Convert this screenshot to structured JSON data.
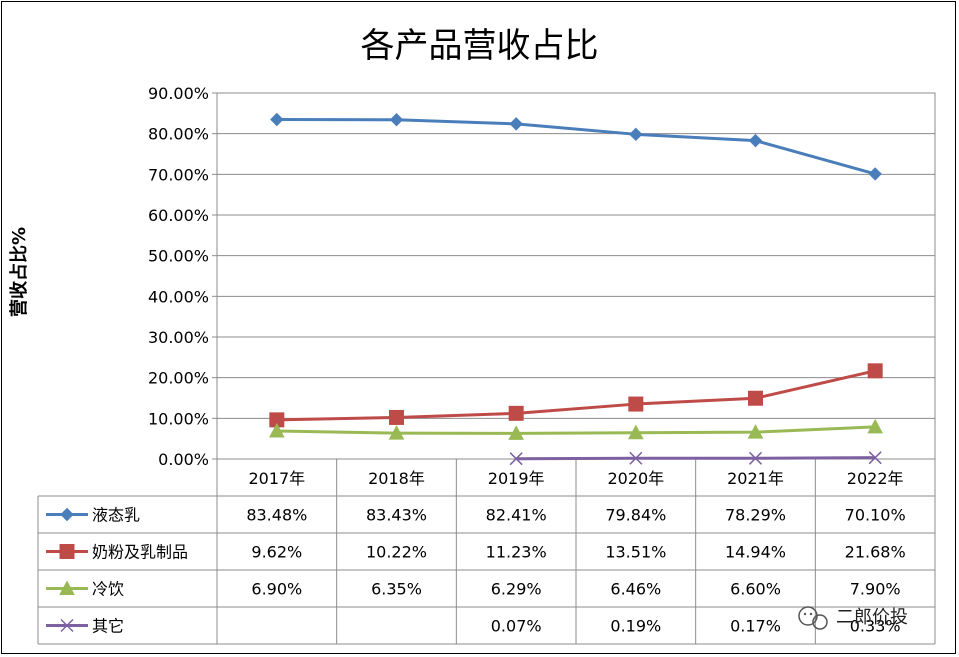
{
  "chart_data": {
    "type": "line",
    "title": "各产品营收占比",
    "ylabel": "营收占比%",
    "xlabel": "",
    "ylim": [
      0,
      90
    ],
    "y_ticks": [
      "0.00%",
      "10.00%",
      "20.00%",
      "30.00%",
      "40.00%",
      "50.00%",
      "60.00%",
      "70.00%",
      "80.00%",
      "90.00%"
    ],
    "categories": [
      "2017年",
      "2018年",
      "2019年",
      "2020年",
      "2021年",
      "2022年"
    ],
    "grid": true,
    "legend": "data-table",
    "series": [
      {
        "name": "液态乳",
        "color": "#4a7ebb",
        "marker": "diamond",
        "values": [
          83.48,
          83.43,
          82.41,
          79.84,
          78.29,
          70.1
        ],
        "labels": [
          "83.48%",
          "83.43%",
          "82.41%",
          "79.84%",
          "78.29%",
          "70.10%"
        ]
      },
      {
        "name": "奶粉及乳制品",
        "color": "#be4b48",
        "marker": "square",
        "values": [
          9.62,
          10.22,
          11.23,
          13.51,
          14.94,
          21.68
        ],
        "labels": [
          "9.62%",
          "10.22%",
          "11.23%",
          "13.51%",
          "14.94%",
          "21.68%"
        ]
      },
      {
        "name": "冷饮",
        "color": "#98b954",
        "marker": "triangle",
        "values": [
          6.9,
          6.35,
          6.29,
          6.46,
          6.6,
          7.9
        ],
        "labels": [
          "6.90%",
          "6.35%",
          "6.29%",
          "6.46%",
          "6.60%",
          "7.90%"
        ]
      },
      {
        "name": "其它",
        "color": "#7d60a0",
        "marker": "x",
        "values": [
          null,
          null,
          0.07,
          0.19,
          0.17,
          0.33
        ],
        "labels": [
          "",
          "",
          "0.07%",
          "0.19%",
          "0.17%",
          "0.33%"
        ]
      }
    ]
  },
  "watermark": {
    "text": "二郎价投",
    "icon": "wechat-icon"
  }
}
